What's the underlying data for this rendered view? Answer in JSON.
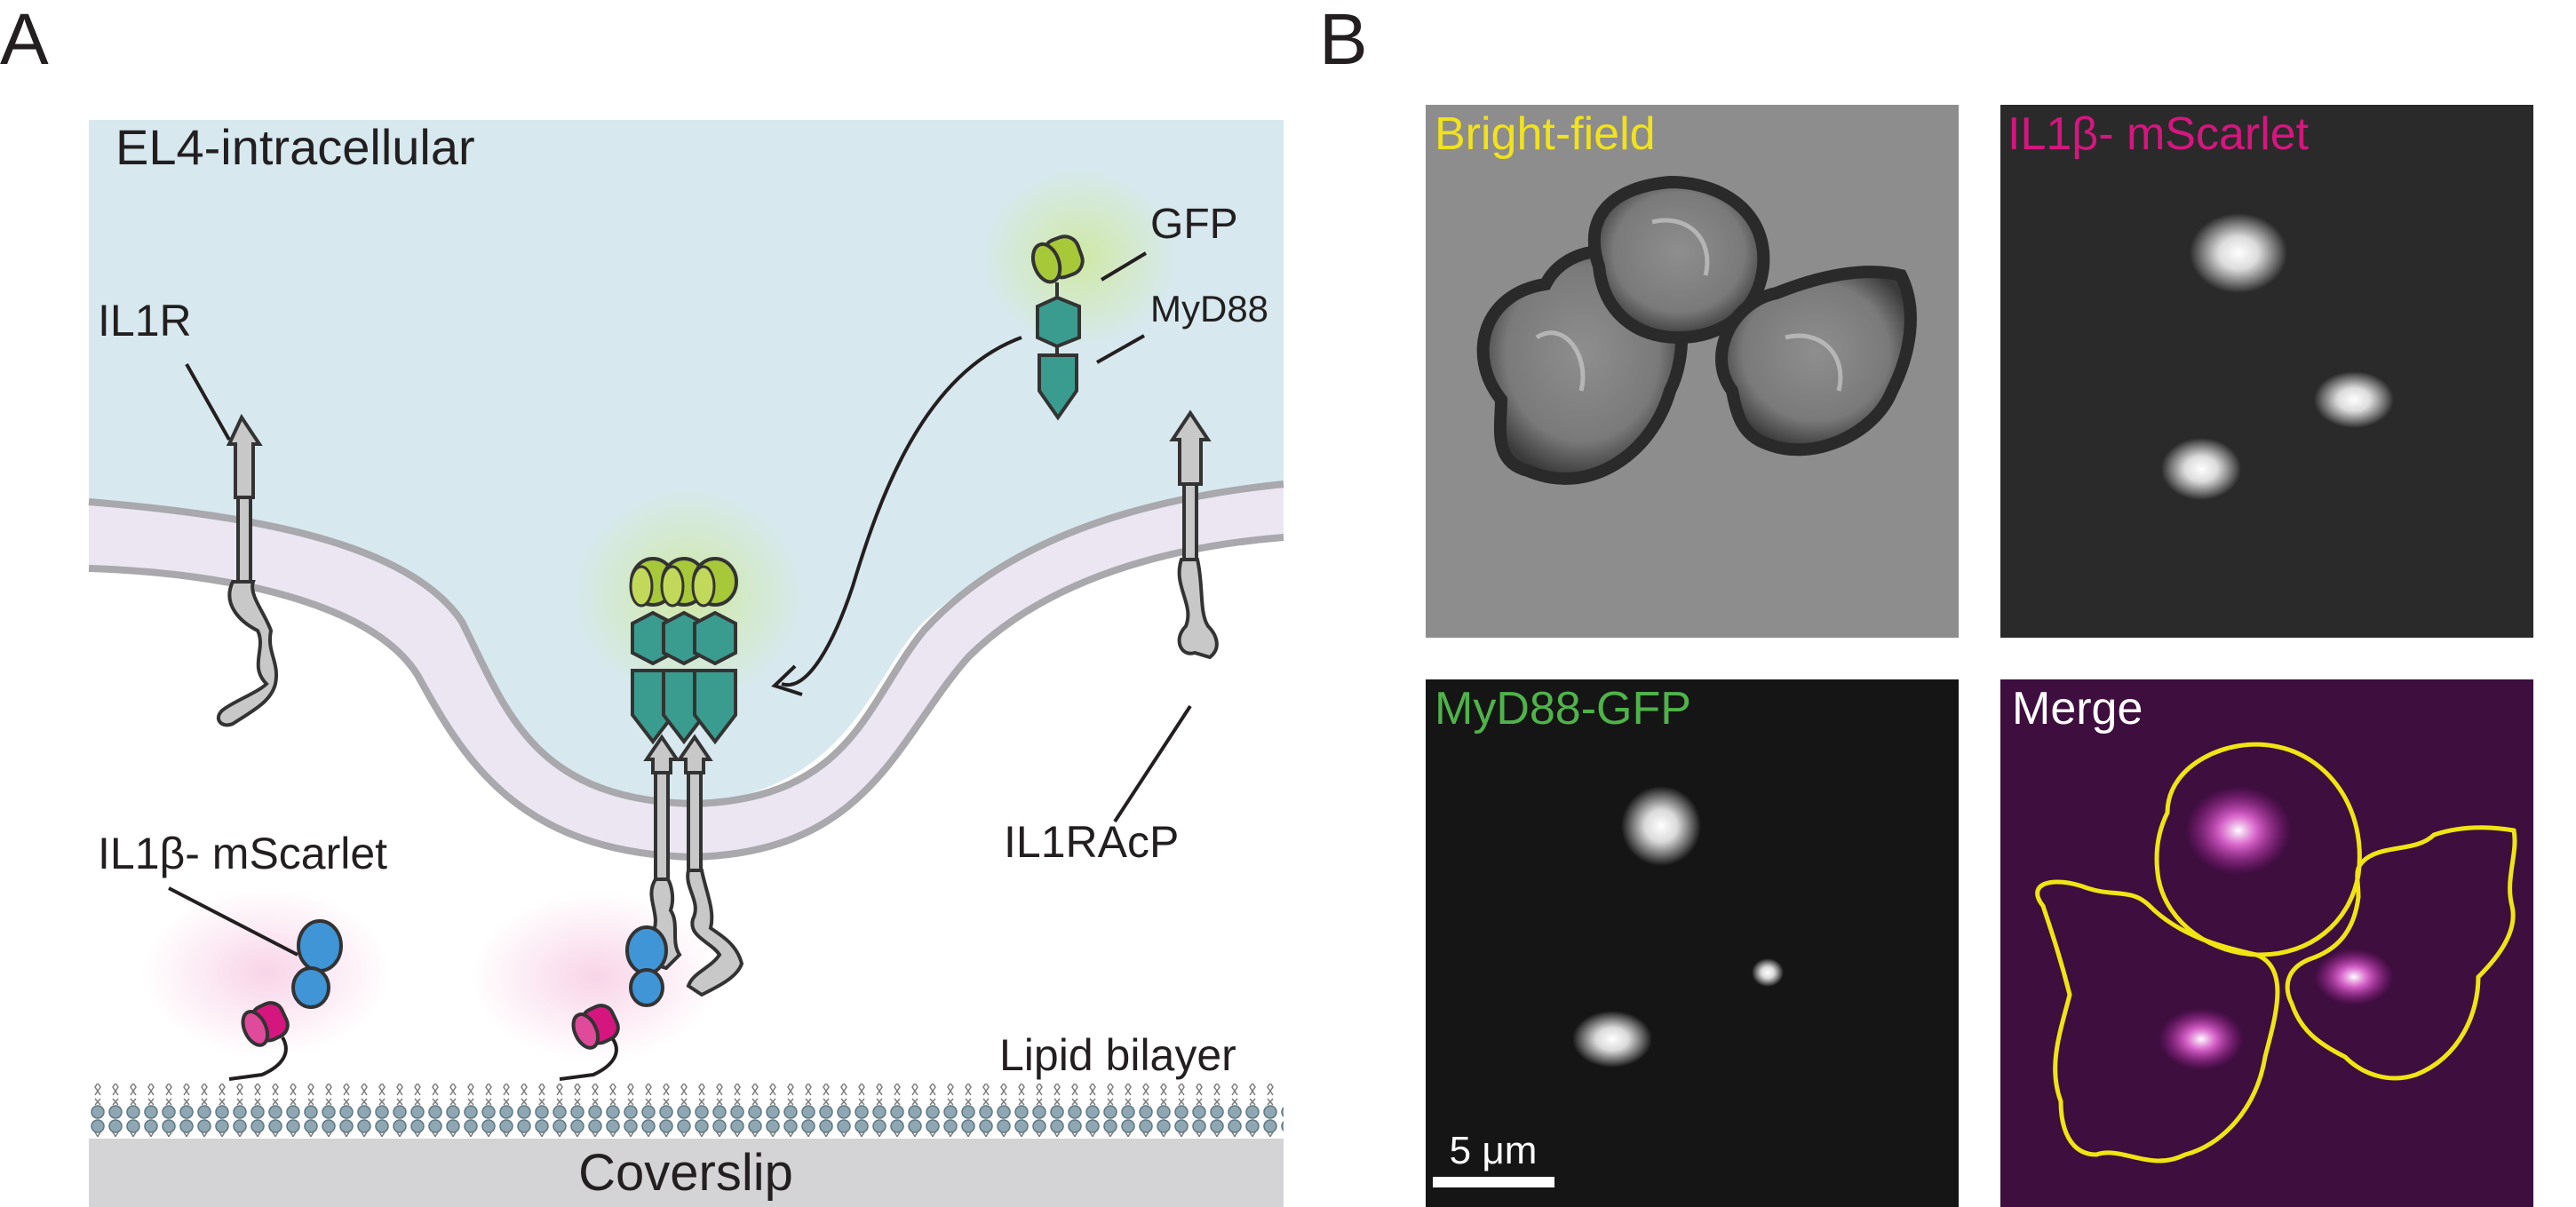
{
  "panels": {
    "a": {
      "letter": "A",
      "region_label": "EL4-intracellular",
      "labels": {
        "il1r": "IL1R",
        "gfp": "GFP",
        "myd88": "MyD88",
        "il1b": "IL1β- mScarlet",
        "il1racp": "IL1RAcP",
        "lipid": "Lipid bilayer",
        "coverslip": "Coverslip"
      }
    },
    "b": {
      "letter": "B",
      "images": {
        "bright": "Bright-field",
        "scarlet": "IL1β- mScarlet",
        "gfp": "MyD88-GFP",
        "merge": "Merge"
      },
      "scalebar": "5 μm"
    }
  },
  "colors": {
    "cytoplasm": "#d7e9ee",
    "membrane": "#ebe6f2",
    "membrane_edge": "#a8a8ad",
    "coverslip": "#d4d4d6",
    "receptor": "#c8c8c8",
    "myd88": "#3a9c8e",
    "gfp": "#a7c939",
    "mscarlet": "#d6167f",
    "il1b_blue": "#3f95d6",
    "lipid_head": "#8fa7b3",
    "label_bright": "#f1e21b",
    "label_scarlet": "#d6167f",
    "label_gfp": "#4fb34a",
    "label_merge": "#ffffff",
    "outline_yellow": "#f0e512"
  }
}
